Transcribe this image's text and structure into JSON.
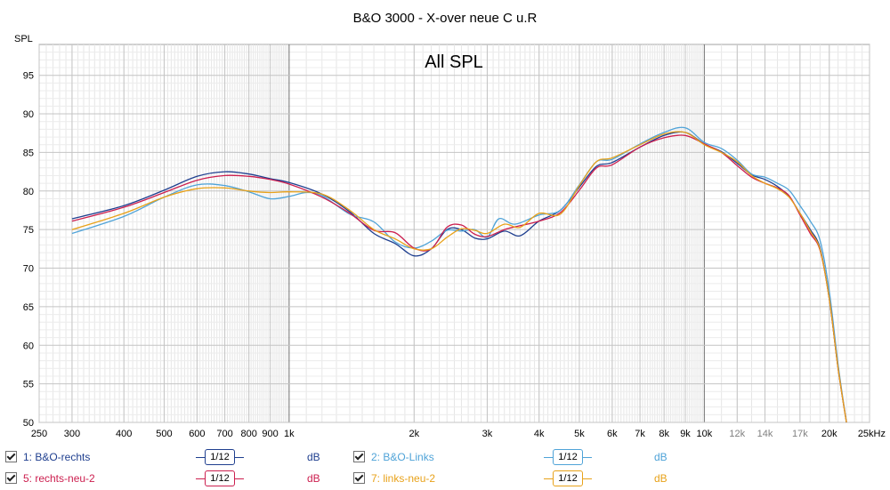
{
  "chart_data": {
    "type": "line",
    "title": "B&O 3000 - X-over neue C u.R",
    "annotation": "All SPL",
    "ylabel": "SPL",
    "xlim": [
      250,
      25000
    ],
    "ylim": [
      50,
      99
    ],
    "x_scale": "log",
    "grid": true,
    "x_ticks": [
      {
        "value": 250,
        "label": "250"
      },
      {
        "value": 300,
        "label": "300"
      },
      {
        "value": 400,
        "label": "400"
      },
      {
        "value": 500,
        "label": "500"
      },
      {
        "value": 600,
        "label": "600"
      },
      {
        "value": 700,
        "label": "700"
      },
      {
        "value": 800,
        "label": "800"
      },
      {
        "value": 900,
        "label": "900"
      },
      {
        "value": 1000,
        "label": "1k"
      },
      {
        "value": 2000,
        "label": "2k"
      },
      {
        "value": 3000,
        "label": "3k"
      },
      {
        "value": 4000,
        "label": "4k"
      },
      {
        "value": 5000,
        "label": "5k"
      },
      {
        "value": 6000,
        "label": "6k"
      },
      {
        "value": 7000,
        "label": "7k"
      },
      {
        "value": 8000,
        "label": "8k"
      },
      {
        "value": 9000,
        "label": "9k"
      },
      {
        "value": 10000,
        "label": "10k"
      },
      {
        "value": 12000,
        "label": "12k"
      },
      {
        "value": 14000,
        "label": "14k"
      },
      {
        "value": 17000,
        "label": "17k"
      },
      {
        "value": 20000,
        "label": "20k"
      },
      {
        "value": 25000,
        "label": "25kHz"
      }
    ],
    "y_ticks": [
      50,
      55,
      60,
      65,
      70,
      75,
      80,
      85,
      90,
      95
    ],
    "series": [
      {
        "name": "1: B&O-rechts",
        "color": "#1f3f8f",
        "points": [
          [
            300,
            76.4
          ],
          [
            400,
            78.1
          ],
          [
            500,
            80.1
          ],
          [
            600,
            81.9
          ],
          [
            700,
            82.5
          ],
          [
            800,
            82.2
          ],
          [
            900,
            81.6
          ],
          [
            1000,
            81.1
          ],
          [
            1200,
            79.6
          ],
          [
            1400,
            77.3
          ],
          [
            1600,
            74.5
          ],
          [
            1800,
            73.2
          ],
          [
            2000,
            71.6
          ],
          [
            2200,
            72.5
          ],
          [
            2400,
            75.0
          ],
          [
            2600,
            75.0
          ],
          [
            2800,
            73.9
          ],
          [
            3000,
            73.8
          ],
          [
            3300,
            74.8
          ],
          [
            3600,
            74.2
          ],
          [
            4000,
            76.1
          ],
          [
            4500,
            77.5
          ],
          [
            5000,
            80.5
          ],
          [
            5500,
            83.2
          ],
          [
            6000,
            83.7
          ],
          [
            7000,
            85.7
          ],
          [
            8000,
            87.2
          ],
          [
            9000,
            87.6
          ],
          [
            10000,
            86.1
          ],
          [
            11000,
            85.1
          ],
          [
            12000,
            83.6
          ],
          [
            13000,
            82.1
          ],
          [
            14000,
            81.5
          ],
          [
            15000,
            80.6
          ],
          [
            16000,
            79.3
          ],
          [
            17000,
            77.1
          ],
          [
            18000,
            75.0
          ],
          [
            19000,
            72.6
          ],
          [
            20000,
            66.0
          ],
          [
            21000,
            57.0
          ],
          [
            22000,
            50.0
          ]
        ]
      },
      {
        "name": "2: B&O-Links",
        "color": "#4fa3d8",
        "points": [
          [
            300,
            74.5
          ],
          [
            400,
            76.7
          ],
          [
            500,
            79.2
          ],
          [
            600,
            80.8
          ],
          [
            700,
            80.7
          ],
          [
            800,
            79.9
          ],
          [
            900,
            79.0
          ],
          [
            1000,
            79.3
          ],
          [
            1100,
            79.8
          ],
          [
            1200,
            79.4
          ],
          [
            1400,
            77.0
          ],
          [
            1600,
            76.0
          ],
          [
            1800,
            73.4
          ],
          [
            2000,
            72.6
          ],
          [
            2200,
            73.5
          ],
          [
            2400,
            74.9
          ],
          [
            2600,
            74.8
          ],
          [
            2800,
            75.0
          ],
          [
            3000,
            74.0
          ],
          [
            3200,
            76.4
          ],
          [
            3500,
            75.7
          ],
          [
            4000,
            76.9
          ],
          [
            4500,
            77.5
          ],
          [
            5000,
            80.8
          ],
          [
            5500,
            83.8
          ],
          [
            6000,
            84.1
          ],
          [
            7000,
            86.1
          ],
          [
            8000,
            87.6
          ],
          [
            9000,
            88.2
          ],
          [
            10000,
            86.3
          ],
          [
            11000,
            85.5
          ],
          [
            12000,
            84.0
          ],
          [
            13000,
            82.2
          ],
          [
            14000,
            81.8
          ],
          [
            15000,
            81.0
          ],
          [
            16000,
            80.1
          ],
          [
            17000,
            78.1
          ],
          [
            18000,
            76.1
          ],
          [
            19000,
            73.6
          ],
          [
            20000,
            67.0
          ],
          [
            21000,
            57.5
          ],
          [
            22000,
            50.0
          ]
        ]
      },
      {
        "name": "5: rechts-neu-2",
        "color": "#cc1f4f",
        "points": [
          [
            300,
            76.1
          ],
          [
            400,
            77.9
          ],
          [
            500,
            79.8
          ],
          [
            600,
            81.4
          ],
          [
            700,
            82.0
          ],
          [
            800,
            81.9
          ],
          [
            900,
            81.5
          ],
          [
            1000,
            80.9
          ],
          [
            1200,
            79.2
          ],
          [
            1400,
            77.1
          ],
          [
            1600,
            74.9
          ],
          [
            1800,
            74.6
          ],
          [
            2000,
            72.6
          ],
          [
            2200,
            72.5
          ],
          [
            2400,
            75.3
          ],
          [
            2600,
            75.6
          ],
          [
            2800,
            74.4
          ],
          [
            3000,
            74.1
          ],
          [
            3300,
            75.0
          ],
          [
            3600,
            75.5
          ],
          [
            4000,
            76.1
          ],
          [
            4500,
            77.2
          ],
          [
            5000,
            80.1
          ],
          [
            5500,
            83.0
          ],
          [
            6000,
            83.4
          ],
          [
            7000,
            85.7
          ],
          [
            8000,
            86.9
          ],
          [
            9000,
            87.2
          ],
          [
            10000,
            86.1
          ],
          [
            11000,
            85.0
          ],
          [
            12000,
            83.3
          ],
          [
            13000,
            81.8
          ],
          [
            14000,
            81.0
          ],
          [
            15000,
            80.4
          ],
          [
            16000,
            79.4
          ],
          [
            17000,
            76.9
          ],
          [
            18000,
            74.5
          ],
          [
            19000,
            72.3
          ],
          [
            20000,
            66.0
          ],
          [
            21000,
            57.0
          ],
          [
            22000,
            50.0
          ]
        ]
      },
      {
        "name": "7: links-neu-2",
        "color": "#e8a21a",
        "points": [
          [
            300,
            75.0
          ],
          [
            400,
            77.1
          ],
          [
            500,
            79.2
          ],
          [
            600,
            80.3
          ],
          [
            700,
            80.4
          ],
          [
            800,
            80.0
          ],
          [
            900,
            79.8
          ],
          [
            1000,
            79.9
          ],
          [
            1200,
            79.6
          ],
          [
            1400,
            77.5
          ],
          [
            1600,
            75.0
          ],
          [
            1800,
            73.8
          ],
          [
            2000,
            72.5
          ],
          [
            2200,
            72.5
          ],
          [
            2400,
            74.0
          ],
          [
            2600,
            75.1
          ],
          [
            2800,
            74.9
          ],
          [
            3000,
            74.5
          ],
          [
            3300,
            75.7
          ],
          [
            3600,
            75.3
          ],
          [
            4000,
            77.1
          ],
          [
            4500,
            77.0
          ],
          [
            5000,
            80.7
          ],
          [
            5500,
            83.8
          ],
          [
            6000,
            84.3
          ],
          [
            7000,
            86.0
          ],
          [
            8000,
            87.4
          ],
          [
            9000,
            87.6
          ],
          [
            10000,
            86.0
          ],
          [
            11000,
            85.0
          ],
          [
            12000,
            83.8
          ],
          [
            13000,
            82.0
          ],
          [
            14000,
            81.0
          ],
          [
            15000,
            80.3
          ],
          [
            16000,
            79.2
          ],
          [
            17000,
            77.1
          ],
          [
            18000,
            74.8
          ],
          [
            19000,
            72.4
          ],
          [
            20000,
            66.0
          ],
          [
            21000,
            57.0
          ],
          [
            22000,
            50.0
          ]
        ]
      }
    ]
  },
  "legend": {
    "items": [
      {
        "label": "1: B&O-rechts",
        "smoothing": "1/12",
        "unit": "dB",
        "color": "#1f3f8f",
        "checked": true
      },
      {
        "label": "2: B&O-Links",
        "smoothing": "1/12",
        "unit": "dB",
        "color": "#4fa3d8",
        "checked": true
      },
      {
        "label": "5: rechts-neu-2",
        "smoothing": "1/12",
        "unit": "dB",
        "color": "#cc1f4f",
        "checked": true
      },
      {
        "label": "7: links-neu-2",
        "smoothing": "1/12",
        "unit": "dB",
        "color": "#e8a21a",
        "checked": true
      }
    ]
  }
}
